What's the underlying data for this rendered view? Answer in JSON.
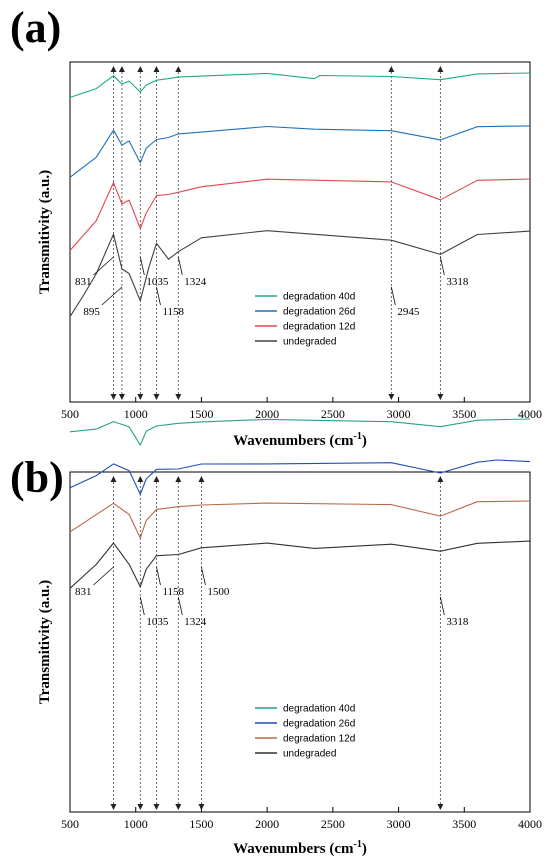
{
  "chart_data": [
    {
      "panel_label": "(a)",
      "type": "line",
      "xlabel": "Wavenumbers (cm",
      "xlabel_sup": "-1",
      "xlabel_tail": ")",
      "ylabel": "Transmitivity (a.u.)",
      "xlim": [
        500,
        4000
      ],
      "x_ticks": [
        "500",
        "1000",
        "1500",
        "2000",
        "2500",
        "3000",
        "3500",
        "4000"
      ],
      "y_axis_values": false,
      "legend_position": "right-middle",
      "series": [
        {
          "name": "degradation 40d",
          "color": "#1aae7a",
          "offset": 4,
          "dip_scale": 0.28,
          "points": [
            [
              500,
              1.4
            ],
            [
              700,
              0.9
            ],
            [
              831,
              0.15
            ],
            [
              895,
              0.55
            ],
            [
              950,
              0.45
            ],
            [
              1035,
              1.0
            ],
            [
              1080,
              0.7
            ],
            [
              1158,
              0.3
            ],
            [
              1250,
              0.3
            ],
            [
              1324,
              0.2
            ],
            [
              1500,
              0.15
            ],
            [
              2000,
              0
            ],
            [
              2360,
              0.35
            ],
            [
              2400,
              0.05
            ],
            [
              2945,
              0.12
            ],
            [
              3318,
              0.3
            ],
            [
              3600,
              0.05
            ],
            [
              4000,
              0
            ]
          ]
        },
        {
          "name": "degradation 26d",
          "color": "#1f72b8",
          "offset": 3,
          "dip_scale": 0.6,
          "points": [
            [
              500,
              1.4
            ],
            [
              700,
              0.9
            ],
            [
              831,
              0.15
            ],
            [
              895,
              0.5
            ],
            [
              950,
              0.45
            ],
            [
              1035,
              1.0
            ],
            [
              1080,
              0.65
            ],
            [
              1158,
              0.35
            ],
            [
              1250,
              0.3
            ],
            [
              1324,
              0.25
            ],
            [
              1500,
              0.15
            ],
            [
              2000,
              0
            ],
            [
              2360,
              0.1
            ],
            [
              2945,
              0.15
            ],
            [
              3318,
              0.4
            ],
            [
              3600,
              0.05
            ],
            [
              4000,
              0
            ]
          ]
        },
        {
          "name": "degradation 12d",
          "color": "#e04850",
          "offset": 2,
          "dip_scale": 0.85,
          "points": [
            [
              500,
              1.4
            ],
            [
              700,
              0.85
            ],
            [
              831,
              0.1
            ],
            [
              895,
              0.5
            ],
            [
              950,
              0.45
            ],
            [
              1035,
              1.0
            ],
            [
              1080,
              0.7
            ],
            [
              1158,
              0.35
            ],
            [
              1250,
              0.3
            ],
            [
              1324,
              0.3
            ],
            [
              1500,
              0.15
            ],
            [
              2000,
              0
            ],
            [
              2945,
              0.1
            ],
            [
              3318,
              0.45
            ],
            [
              3600,
              0.05
            ],
            [
              4000,
              0
            ]
          ]
        },
        {
          "name": "undegraded",
          "color": "#404040",
          "offset": 1,
          "dip_scale": 1.2,
          "points": [
            [
              500,
              1.2
            ],
            [
              600,
              0.9
            ],
            [
              700,
              0.6
            ],
            [
              831,
              0.05
            ],
            [
              895,
              0.55
            ],
            [
              950,
              0.6
            ],
            [
              1035,
              1.0
            ],
            [
              1100,
              0.5
            ],
            [
              1158,
              0.2
            ],
            [
              1250,
              0.4
            ],
            [
              1324,
              0.3
            ],
            [
              1500,
              0.1
            ],
            [
              2000,
              0
            ],
            [
              2945,
              0.15
            ],
            [
              3318,
              0.35
            ],
            [
              3600,
              0.05
            ],
            [
              4000,
              0
            ]
          ]
        }
      ],
      "annotations": [
        {
          "text": "831",
          "x": 831,
          "y_dir": "down-left"
        },
        {
          "text": "895",
          "x": 895,
          "y_dir": "down-left"
        },
        {
          "text": "1035",
          "x": 1035,
          "y_dir": "down"
        },
        {
          "text": "1158",
          "x": 1158,
          "y_dir": "down"
        },
        {
          "text": "1324",
          "x": 1324,
          "y_dir": "down"
        },
        {
          "text": "2945",
          "x": 2945,
          "y_dir": "down"
        },
        {
          "text": "3318",
          "x": 3318,
          "y_dir": "down"
        }
      ],
      "reference_lines_x": [
        831,
        895,
        1035,
        1158,
        1324,
        2945,
        3318
      ]
    },
    {
      "panel_label": "(b)",
      "type": "line",
      "xlabel": "Wavenumbers (cm",
      "xlabel_sup": "-1",
      "xlabel_tail": ")",
      "ylabel": "Transmitivity (a.u.)",
      "xlim": [
        500,
        4000
      ],
      "x_ticks": [
        "500",
        "1000",
        "1500",
        "2000",
        "2500",
        "3000",
        "3500",
        "4000"
      ],
      "y_axis_values": false,
      "legend_position": "right-middle",
      "series": [
        {
          "name": "degradation 40d",
          "color": "#2aa088",
          "offset": 4,
          "dip_scale": 0.5,
          "points": [
            [
              500,
              0.5
            ],
            [
              700,
              0.4
            ],
            [
              831,
              0.1
            ],
            [
              950,
              0.3
            ],
            [
              1035,
              1.0
            ],
            [
              1080,
              0.5
            ],
            [
              1158,
              0.2
            ],
            [
              1324,
              0.15
            ],
            [
              1500,
              0.1
            ],
            [
              2000,
              0
            ],
            [
              2945,
              0.05
            ],
            [
              3318,
              0.25
            ],
            [
              3600,
              0.05
            ],
            [
              4000,
              0
            ]
          ]
        },
        {
          "name": "degradation 26d",
          "color": "#1f4fb8",
          "offset": 3,
          "dip_scale": 0.7,
          "points": [
            [
              500,
              0.8
            ],
            [
              700,
              0.5
            ],
            [
              831,
              0.15
            ],
            [
              950,
              0.35
            ],
            [
              1035,
              1.0
            ],
            [
              1080,
              0.6
            ],
            [
              1158,
              0.25
            ],
            [
              1324,
              0.3
            ],
            [
              1500,
              0.1
            ],
            [
              2000,
              0.1
            ],
            [
              2945,
              0.1
            ],
            [
              3318,
              0.4
            ],
            [
              3600,
              0.1
            ],
            [
              3750,
              0
            ],
            [
              4000,
              0.05
            ]
          ]
        },
        {
          "name": "degradation 12d",
          "color": "#b8684a",
          "offset": 2,
          "dip_scale": 0.8,
          "points": [
            [
              500,
              0.8
            ],
            [
              700,
              0.4
            ],
            [
              831,
              0.1
            ],
            [
              950,
              0.4
            ],
            [
              1035,
              1.0
            ],
            [
              1080,
              0.55
            ],
            [
              1158,
              0.25
            ],
            [
              1324,
              0.2
            ],
            [
              1500,
              0.1
            ],
            [
              2000,
              0.05
            ],
            [
              2945,
              0.15
            ],
            [
              3318,
              0.45
            ],
            [
              3600,
              0.05
            ],
            [
              4000,
              0
            ]
          ]
        },
        {
          "name": "undegraded",
          "color": "#333333",
          "offset": 1,
          "dip_scale": 1.0,
          "points": [
            [
              500,
              1.0
            ],
            [
              700,
              0.5
            ],
            [
              831,
              0.05
            ],
            [
              950,
              0.5
            ],
            [
              1035,
              1.0
            ],
            [
              1080,
              0.6
            ],
            [
              1158,
              0.35
            ],
            [
              1324,
              0.3
            ],
            [
              1500,
              0.15
            ],
            [
              2000,
              0.05
            ],
            [
              2360,
              0.15
            ],
            [
              2945,
              0.1
            ],
            [
              3318,
              0.25
            ],
            [
              3600,
              0.05
            ],
            [
              4000,
              0
            ]
          ]
        }
      ],
      "annotations": [
        {
          "text": "831",
          "x": 831,
          "y_dir": "down-left"
        },
        {
          "text": "1035",
          "x": 1035,
          "y_dir": "down"
        },
        {
          "text": "1158",
          "x": 1158,
          "y_dir": "down"
        },
        {
          "text": "1324",
          "x": 1324,
          "y_dir": "down"
        },
        {
          "text": "1500",
          "x": 1500,
          "y_dir": "down"
        },
        {
          "text": "3318",
          "x": 3318,
          "y_dir": "down"
        }
      ],
      "reference_lines_x": [
        831,
        1035,
        1158,
        1324,
        1500,
        3318
      ]
    }
  ]
}
